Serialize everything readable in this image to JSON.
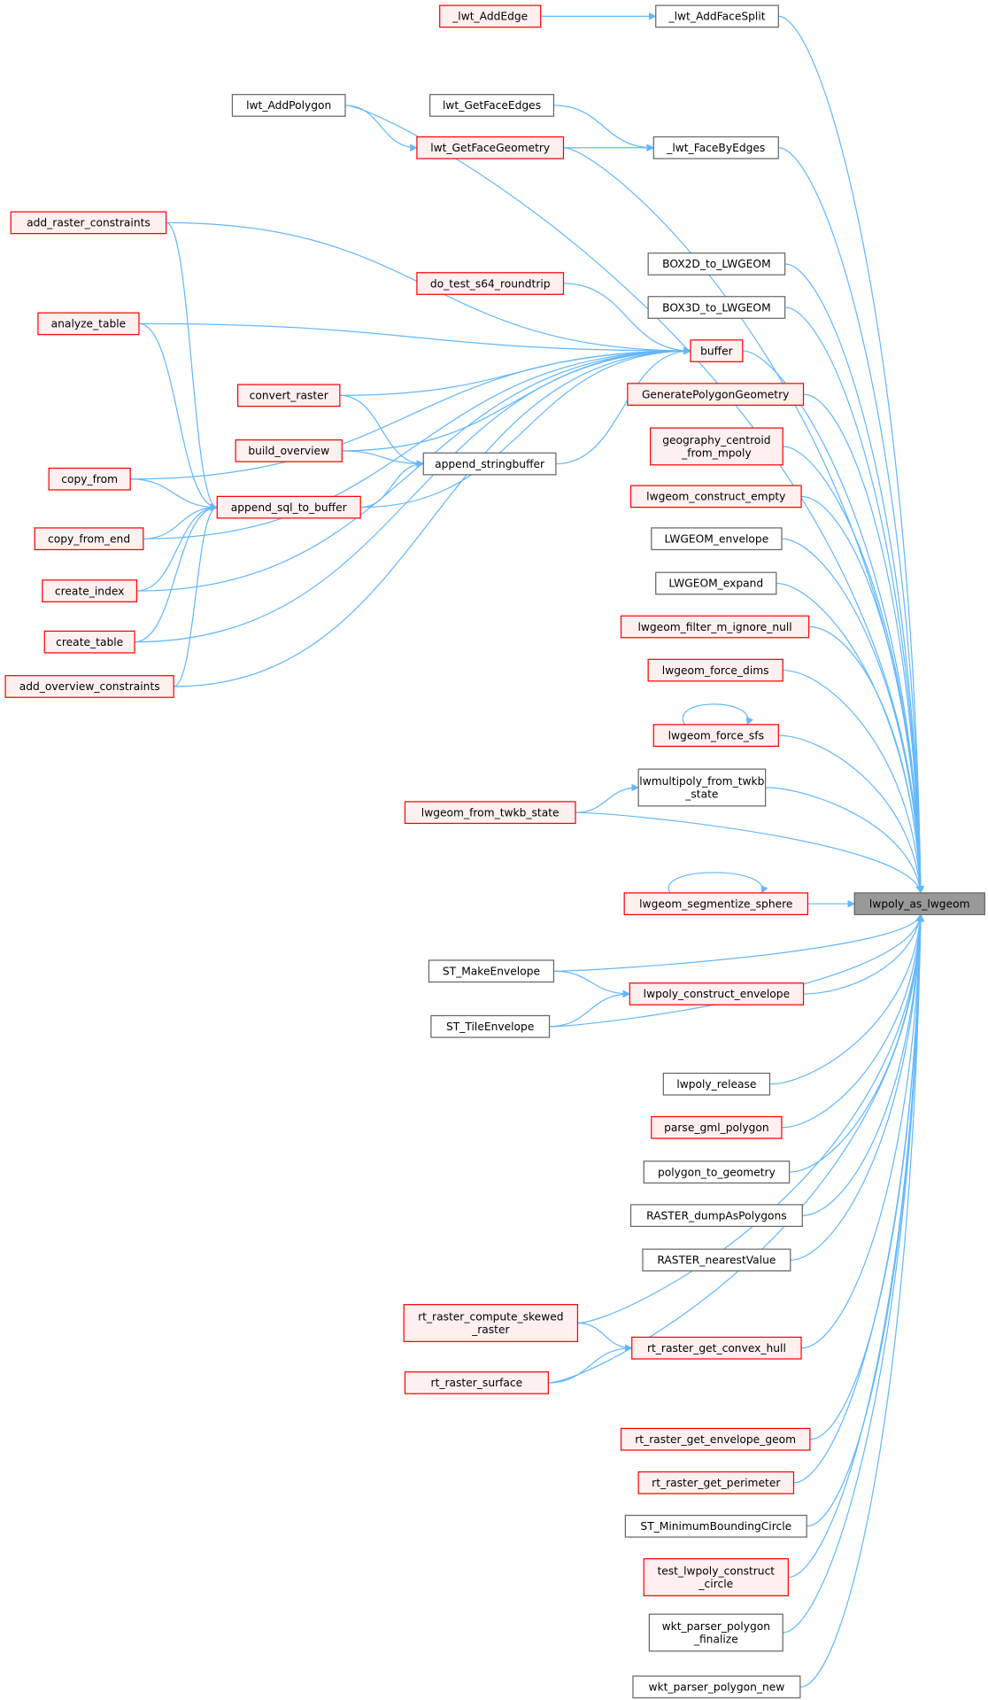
{
  "colors": {
    "edge": "#63b8ff",
    "red_fill": "#fff0f0",
    "red_stroke": "#ff0000",
    "gray_fill": "#ffffff",
    "gray_stroke": "#666666",
    "highlight_fill": "#999999"
  },
  "nodes": [
    {
      "id": "_lwt_AddEdge",
      "kind": "red",
      "lines": [
        "_lwt_AddEdge"
      ]
    },
    {
      "id": "_lwt_AddFaceSplit",
      "kind": "gray",
      "lines": [
        "_lwt_AddFaceSplit"
      ]
    },
    {
      "id": "lwt_AddPolygon",
      "kind": "gray",
      "lines": [
        "lwt_AddPolygon"
      ]
    },
    {
      "id": "lwt_GetFaceEdges",
      "kind": "gray",
      "lines": [
        "lwt_GetFaceEdges"
      ]
    },
    {
      "id": "lwt_GetFaceGeometry",
      "kind": "red",
      "lines": [
        "lwt_GetFaceGeometry"
      ]
    },
    {
      "id": "_lwt_FaceByEdges",
      "kind": "gray",
      "lines": [
        "_lwt_FaceByEdges"
      ]
    },
    {
      "id": "add_raster_constraints",
      "kind": "red",
      "lines": [
        "add_raster_constraints"
      ]
    },
    {
      "id": "BOX2D_to_LWGEOM",
      "kind": "gray",
      "lines": [
        "BOX2D_to_LWGEOM"
      ]
    },
    {
      "id": "do_test_s64_roundtrip",
      "kind": "red",
      "lines": [
        "do_test_s64_roundtrip"
      ]
    },
    {
      "id": "BOX3D_to_LWGEOM",
      "kind": "gray",
      "lines": [
        "BOX3D_to_LWGEOM"
      ]
    },
    {
      "id": "analyze_table",
      "kind": "red",
      "lines": [
        "analyze_table"
      ]
    },
    {
      "id": "buffer",
      "kind": "red",
      "lines": [
        "buffer"
      ]
    },
    {
      "id": "convert_raster",
      "kind": "red",
      "lines": [
        "convert_raster"
      ]
    },
    {
      "id": "GeneratePolygonGeometry",
      "kind": "red",
      "lines": [
        "GeneratePolygonGeometry"
      ]
    },
    {
      "id": "build_overview",
      "kind": "red",
      "lines": [
        "build_overview"
      ]
    },
    {
      "id": "geography_centroid_from_mpoly",
      "kind": "red",
      "lines": [
        "geography_centroid",
        "_from_mpoly"
      ]
    },
    {
      "id": "append_stringbuffer",
      "kind": "gray",
      "lines": [
        "append_stringbuffer"
      ]
    },
    {
      "id": "copy_from",
      "kind": "red",
      "lines": [
        "copy_from"
      ]
    },
    {
      "id": "append_sql_to_buffer",
      "kind": "red",
      "lines": [
        "append_sql_to_buffer"
      ]
    },
    {
      "id": "lwgeom_construct_empty",
      "kind": "red",
      "lines": [
        "lwgeom_construct_empty"
      ]
    },
    {
      "id": "copy_from_end",
      "kind": "red",
      "lines": [
        "copy_from_end"
      ]
    },
    {
      "id": "LWGEOM_envelope",
      "kind": "gray",
      "lines": [
        "LWGEOM_envelope"
      ]
    },
    {
      "id": "LWGEOM_expand",
      "kind": "gray",
      "lines": [
        "LWGEOM_expand"
      ]
    },
    {
      "id": "create_index",
      "kind": "red",
      "lines": [
        "create_index"
      ]
    },
    {
      "id": "lwgeom_filter_m_ignore_null",
      "kind": "red",
      "lines": [
        "lwgeom_filter_m_ignore_null"
      ]
    },
    {
      "id": "create_table",
      "kind": "red",
      "lines": [
        "create_table"
      ]
    },
    {
      "id": "add_overview_constraints",
      "kind": "red",
      "lines": [
        "add_overview_constraints"
      ]
    },
    {
      "id": "lwgeom_force_dims",
      "kind": "red",
      "lines": [
        "lwgeom_force_dims"
      ]
    },
    {
      "id": "lwgeom_force_sfs",
      "kind": "red",
      "lines": [
        "lwgeom_force_sfs"
      ]
    },
    {
      "id": "lwmultipoly_from_twkb_state",
      "kind": "gray",
      "lines": [
        "lwmultipoly_from_twkb",
        "_state"
      ]
    },
    {
      "id": "lwgeom_from_twkb_state",
      "kind": "red",
      "lines": [
        "lwgeom_from_twkb_state"
      ]
    },
    {
      "id": "lwgeom_segmentize_sphere",
      "kind": "red",
      "lines": [
        "lwgeom_segmentize_sphere"
      ]
    },
    {
      "id": "lwpoly_as_lwgeom",
      "kind": "highlight",
      "lines": [
        "lwpoly_as_lwgeom"
      ]
    },
    {
      "id": "ST_MakeEnvelope",
      "kind": "gray",
      "lines": [
        "ST_MakeEnvelope"
      ]
    },
    {
      "id": "lwpoly_construct_envelope",
      "kind": "red",
      "lines": [
        "lwpoly_construct_envelope"
      ]
    },
    {
      "id": "ST_TileEnvelope",
      "kind": "gray",
      "lines": [
        "ST_TileEnvelope"
      ]
    },
    {
      "id": "lwpoly_release",
      "kind": "gray",
      "lines": [
        "lwpoly_release"
      ]
    },
    {
      "id": "parse_gml_polygon",
      "kind": "red",
      "lines": [
        "parse_gml_polygon"
      ]
    },
    {
      "id": "polygon_to_geometry",
      "kind": "gray",
      "lines": [
        "polygon_to_geometry"
      ]
    },
    {
      "id": "RASTER_dumpAsPolygons",
      "kind": "gray",
      "lines": [
        "RASTER_dumpAsPolygons"
      ]
    },
    {
      "id": "RASTER_nearestValue",
      "kind": "gray",
      "lines": [
        "RASTER_nearestValue"
      ]
    },
    {
      "id": "rt_raster_compute_skewed_raster",
      "kind": "red",
      "lines": [
        "rt_raster_compute_skewed",
        "_raster"
      ]
    },
    {
      "id": "rt_raster_get_convex_hull",
      "kind": "red",
      "lines": [
        "rt_raster_get_convex_hull"
      ]
    },
    {
      "id": "rt_raster_surface",
      "kind": "red",
      "lines": [
        "rt_raster_surface"
      ]
    },
    {
      "id": "rt_raster_get_envelope_geom",
      "kind": "red",
      "lines": [
        "rt_raster_get_envelope_geom"
      ]
    },
    {
      "id": "rt_raster_get_perimeter",
      "kind": "red",
      "lines": [
        "rt_raster_get_perimeter"
      ]
    },
    {
      "id": "ST_MinimumBoundingCircle",
      "kind": "gray",
      "lines": [
        "ST_MinimumBoundingCircle"
      ]
    },
    {
      "id": "test_lwpoly_construct_circle",
      "kind": "red",
      "lines": [
        "test_lwpoly_construct",
        "_circle"
      ]
    },
    {
      "id": "wkt_parser_polygon_finalize",
      "kind": "gray",
      "lines": [
        "wkt_parser_polygon",
        "_finalize"
      ]
    },
    {
      "id": "wkt_parser_polygon_new",
      "kind": "gray",
      "lines": [
        "wkt_parser_polygon_new"
      ]
    }
  ],
  "edges": [
    [
      "_lwt_AddEdge",
      "_lwt_AddFaceSplit"
    ],
    [
      "lwt_AddPolygon",
      "lwt_GetFaceGeometry"
    ],
    [
      "lwt_GetFaceEdges",
      "_lwt_FaceByEdges"
    ],
    [
      "lwt_GetFaceGeometry",
      "_lwt_FaceByEdges"
    ],
    [
      "add_raster_constraints",
      "buffer"
    ],
    [
      "add_raster_constraints",
      "append_sql_to_buffer"
    ],
    [
      "analyze_table",
      "buffer"
    ],
    [
      "analyze_table",
      "append_sql_to_buffer"
    ],
    [
      "do_test_s64_roundtrip",
      "buffer"
    ],
    [
      "convert_raster",
      "buffer"
    ],
    [
      "convert_raster",
      "append_stringbuffer"
    ],
    [
      "build_overview",
      "buffer"
    ],
    [
      "build_overview",
      "append_stringbuffer"
    ],
    [
      "append_stringbuffer",
      "buffer"
    ],
    [
      "copy_from",
      "buffer"
    ],
    [
      "copy_from",
      "append_sql_to_buffer"
    ],
    [
      "append_sql_to_buffer",
      "buffer"
    ],
    [
      "append_sql_to_buffer",
      "append_stringbuffer"
    ],
    [
      "copy_from_end",
      "buffer"
    ],
    [
      "copy_from_end",
      "append_sql_to_buffer"
    ],
    [
      "create_index",
      "buffer"
    ],
    [
      "create_index",
      "append_sql_to_buffer"
    ],
    [
      "create_table",
      "buffer"
    ],
    [
      "create_table",
      "append_sql_to_buffer"
    ],
    [
      "add_overview_constraints",
      "buffer"
    ],
    [
      "add_overview_constraints",
      "append_sql_to_buffer"
    ],
    [
      "lwgeom_force_sfs",
      "lwgeom_force_sfs"
    ],
    [
      "lwgeom_from_twkb_state",
      "lwmultipoly_from_twkb_state"
    ],
    [
      "lwgeom_segmentize_sphere",
      "lwgeom_segmentize_sphere"
    ],
    [
      "ST_MakeEnvelope",
      "lwpoly_construct_envelope"
    ],
    [
      "ST_TileEnvelope",
      "lwpoly_construct_envelope"
    ],
    [
      "rt_raster_compute_skewed_raster",
      "rt_raster_get_convex_hull"
    ],
    [
      "rt_raster_surface",
      "rt_raster_get_convex_hull"
    ],
    [
      "_lwt_AddFaceSplit",
      "lwpoly_as_lwgeom"
    ],
    [
      "lwt_AddPolygon",
      "lwpoly_as_lwgeom"
    ],
    [
      "_lwt_FaceByEdges",
      "lwpoly_as_lwgeom"
    ],
    [
      "lwt_GetFaceGeometry",
      "lwpoly_as_lwgeom"
    ],
    [
      "BOX2D_to_LWGEOM",
      "lwpoly_as_lwgeom"
    ],
    [
      "BOX3D_to_LWGEOM",
      "lwpoly_as_lwgeom"
    ],
    [
      "buffer",
      "lwpoly_as_lwgeom"
    ],
    [
      "GeneratePolygonGeometry",
      "lwpoly_as_lwgeom"
    ],
    [
      "geography_centroid_from_mpoly",
      "lwpoly_as_lwgeom"
    ],
    [
      "lwgeom_construct_empty",
      "lwpoly_as_lwgeom"
    ],
    [
      "LWGEOM_envelope",
      "lwpoly_as_lwgeom"
    ],
    [
      "LWGEOM_expand",
      "lwpoly_as_lwgeom"
    ],
    [
      "lwgeom_filter_m_ignore_null",
      "lwpoly_as_lwgeom"
    ],
    [
      "lwgeom_force_dims",
      "lwpoly_as_lwgeom"
    ],
    [
      "lwgeom_force_sfs",
      "lwpoly_as_lwgeom"
    ],
    [
      "lwmultipoly_from_twkb_state",
      "lwpoly_as_lwgeom"
    ],
    [
      "lwgeom_from_twkb_state",
      "lwpoly_as_lwgeom"
    ],
    [
      "lwgeom_segmentize_sphere",
      "lwpoly_as_lwgeom"
    ],
    [
      "ST_MakeEnvelope",
      "lwpoly_as_lwgeom"
    ],
    [
      "lwpoly_construct_envelope",
      "lwpoly_as_lwgeom"
    ],
    [
      "ST_TileEnvelope",
      "lwpoly_as_lwgeom"
    ],
    [
      "lwpoly_release",
      "lwpoly_as_lwgeom"
    ],
    [
      "parse_gml_polygon",
      "lwpoly_as_lwgeom"
    ],
    [
      "polygon_to_geometry",
      "lwpoly_as_lwgeom"
    ],
    [
      "RASTER_dumpAsPolygons",
      "lwpoly_as_lwgeom"
    ],
    [
      "RASTER_nearestValue",
      "lwpoly_as_lwgeom"
    ],
    [
      "rt_raster_compute_skewed_raster",
      "lwpoly_as_lwgeom"
    ],
    [
      "rt_raster_get_convex_hull",
      "lwpoly_as_lwgeom"
    ],
    [
      "rt_raster_surface",
      "lwpoly_as_lwgeom"
    ],
    [
      "rt_raster_get_envelope_geom",
      "lwpoly_as_lwgeom"
    ],
    [
      "rt_raster_get_perimeter",
      "lwpoly_as_lwgeom"
    ],
    [
      "ST_MinimumBoundingCircle",
      "lwpoly_as_lwgeom"
    ],
    [
      "test_lwpoly_construct_circle",
      "lwpoly_as_lwgeom"
    ],
    [
      "wkt_parser_polygon_finalize",
      "lwpoly_as_lwgeom"
    ],
    [
      "wkt_parser_polygon_new",
      "lwpoly_as_lwgeom"
    ]
  ]
}
